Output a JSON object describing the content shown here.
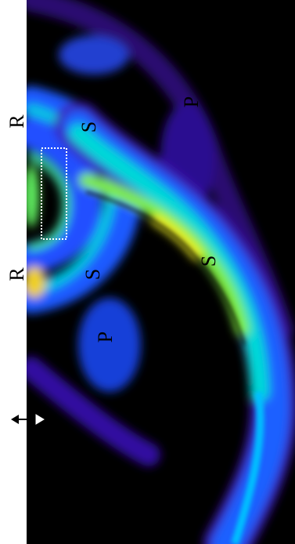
{
  "annotations": [
    "R",
    "R",
    "S",
    "S",
    "S",
    "P",
    "P"
  ]
}
